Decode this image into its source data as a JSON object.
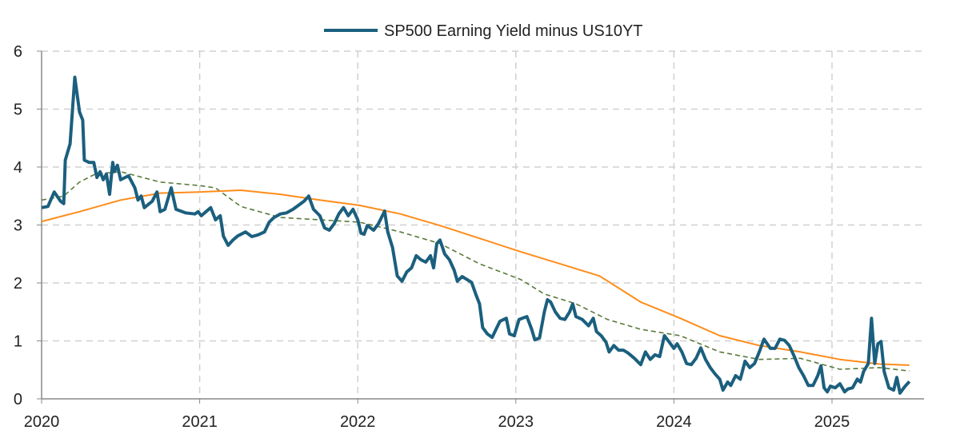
{
  "chart_data": {
    "type": "line",
    "title": "",
    "xlabel": "",
    "ylabel": "",
    "xlim": [
      2020,
      2025.6
    ],
    "ylim": [
      0,
      6
    ],
    "x_ticks": [
      2020,
      2021,
      2022,
      2023,
      2024,
      2025
    ],
    "x_tick_labels": [
      "2020",
      "2021",
      "2022",
      "2023",
      "2024",
      "2025"
    ],
    "y_ticks": [
      0,
      1,
      2,
      3,
      4,
      5,
      6
    ],
    "y_tick_labels": [
      "0",
      "1",
      "2",
      "3",
      "4",
      "5",
      "6"
    ],
    "grid": true,
    "legend_position": "top-center",
    "series": [
      {
        "name": "SP500 Earning Yield minus US10YT",
        "color": "#1b5f7e",
        "style": "solid",
        "in_legend": true,
        "points": [
          [
            2020.0,
            3.3
          ],
          [
            2020.04,
            3.32
          ],
          [
            2020.08,
            3.57
          ],
          [
            2020.12,
            3.41
          ],
          [
            2020.14,
            3.37
          ],
          [
            2020.15,
            4.12
          ],
          [
            2020.18,
            4.4
          ],
          [
            2020.21,
            5.55
          ],
          [
            2020.24,
            4.95
          ],
          [
            2020.26,
            4.81
          ],
          [
            2020.27,
            4.12
          ],
          [
            2020.3,
            4.08
          ],
          [
            2020.33,
            4.08
          ],
          [
            2020.35,
            3.82
          ],
          [
            2020.37,
            3.92
          ],
          [
            2020.39,
            3.78
          ],
          [
            2020.41,
            3.88
          ],
          [
            2020.43,
            3.53
          ],
          [
            2020.45,
            4.08
          ],
          [
            2020.46,
            3.92
          ],
          [
            2020.48,
            4.03
          ],
          [
            2020.5,
            3.78
          ],
          [
            2020.55,
            3.85
          ],
          [
            2020.59,
            3.64
          ],
          [
            2020.61,
            3.43
          ],
          [
            2020.63,
            3.5
          ],
          [
            2020.65,
            3.3
          ],
          [
            2020.7,
            3.41
          ],
          [
            2020.73,
            3.57
          ],
          [
            2020.75,
            3.23
          ],
          [
            2020.78,
            3.27
          ],
          [
            2020.82,
            3.64
          ],
          [
            2020.85,
            3.27
          ],
          [
            2020.91,
            3.21
          ],
          [
            2020.97,
            3.19
          ],
          [
            2020.99,
            3.23
          ],
          [
            2021.01,
            3.16
          ],
          [
            2021.04,
            3.23
          ],
          [
            2021.07,
            3.3
          ],
          [
            2021.1,
            3.09
          ],
          [
            2021.13,
            3.16
          ],
          [
            2021.15,
            2.81
          ],
          [
            2021.18,
            2.65
          ],
          [
            2021.21,
            2.74
          ],
          [
            2021.24,
            2.81
          ],
          [
            2021.29,
            2.88
          ],
          [
            2021.33,
            2.8
          ],
          [
            2021.37,
            2.83
          ],
          [
            2021.41,
            2.88
          ],
          [
            2021.44,
            3.05
          ],
          [
            2021.47,
            3.13
          ],
          [
            2021.51,
            3.19
          ],
          [
            2021.55,
            3.21
          ],
          [
            2021.59,
            3.27
          ],
          [
            2021.63,
            3.35
          ],
          [
            2021.66,
            3.41
          ],
          [
            2021.69,
            3.5
          ],
          [
            2021.72,
            3.27
          ],
          [
            2021.76,
            3.16
          ],
          [
            2021.79,
            2.95
          ],
          [
            2021.82,
            2.91
          ],
          [
            2021.85,
            3.02
          ],
          [
            2021.88,
            3.19
          ],
          [
            2021.91,
            3.3
          ],
          [
            2021.94,
            3.16
          ],
          [
            2021.97,
            3.27
          ],
          [
            2022.0,
            3.09
          ],
          [
            2022.02,
            2.86
          ],
          [
            2022.04,
            2.84
          ],
          [
            2022.06,
            2.99
          ],
          [
            2022.1,
            2.91
          ],
          [
            2022.13,
            3.02
          ],
          [
            2022.17,
            3.24
          ],
          [
            2022.19,
            2.88
          ],
          [
            2022.22,
            2.61
          ],
          [
            2022.25,
            2.12
          ],
          [
            2022.28,
            2.03
          ],
          [
            2022.31,
            2.19
          ],
          [
            2022.34,
            2.26
          ],
          [
            2022.37,
            2.47
          ],
          [
            2022.4,
            2.4
          ],
          [
            2022.43,
            2.36
          ],
          [
            2022.46,
            2.47
          ],
          [
            2022.48,
            2.26
          ],
          [
            2022.5,
            2.68
          ],
          [
            2022.52,
            2.74
          ],
          [
            2022.55,
            2.5
          ],
          [
            2022.58,
            2.4
          ],
          [
            2022.61,
            2.22
          ],
          [
            2022.63,
            2.03
          ],
          [
            2022.66,
            2.11
          ],
          [
            2022.69,
            2.06
          ],
          [
            2022.72,
            2.01
          ],
          [
            2022.75,
            1.78
          ],
          [
            2022.77,
            1.64
          ],
          [
            2022.79,
            1.23
          ],
          [
            2022.82,
            1.12
          ],
          [
            2022.85,
            1.06
          ],
          [
            2022.88,
            1.23
          ],
          [
            2022.9,
            1.34
          ],
          [
            2022.94,
            1.39
          ],
          [
            2022.96,
            1.12
          ],
          [
            2022.99,
            1.09
          ],
          [
            2023.02,
            1.37
          ],
          [
            2023.04,
            1.39
          ],
          [
            2023.07,
            1.42
          ],
          [
            2023.1,
            1.2
          ],
          [
            2023.12,
            1.02
          ],
          [
            2023.15,
            1.05
          ],
          [
            2023.18,
            1.5
          ],
          [
            2023.2,
            1.71
          ],
          [
            2023.22,
            1.67
          ],
          [
            2023.25,
            1.5
          ],
          [
            2023.28,
            1.39
          ],
          [
            2023.31,
            1.37
          ],
          [
            2023.34,
            1.5
          ],
          [
            2023.36,
            1.64
          ],
          [
            2023.38,
            1.42
          ],
          [
            2023.42,
            1.37
          ],
          [
            2023.46,
            1.26
          ],
          [
            2023.49,
            1.39
          ],
          [
            2023.51,
            1.16
          ],
          [
            2023.54,
            1.09
          ],
          [
            2023.57,
            0.98
          ],
          [
            2023.59,
            0.81
          ],
          [
            2023.62,
            0.92
          ],
          [
            2023.65,
            0.84
          ],
          [
            2023.68,
            0.84
          ],
          [
            2023.71,
            0.79
          ],
          [
            2023.75,
            0.7
          ],
          [
            2023.79,
            0.59
          ],
          [
            2023.82,
            0.81
          ],
          [
            2023.85,
            0.68
          ],
          [
            2023.88,
            0.76
          ],
          [
            2023.91,
            0.73
          ],
          [
            2023.94,
            1.09
          ],
          [
            2023.97,
            0.98
          ],
          [
            2024.0,
            0.87
          ],
          [
            2024.02,
            0.95
          ],
          [
            2024.05,
            0.81
          ],
          [
            2024.08,
            0.61
          ],
          [
            2024.11,
            0.59
          ],
          [
            2024.14,
            0.7
          ],
          [
            2024.17,
            0.88
          ],
          [
            2024.2,
            0.68
          ],
          [
            2024.23,
            0.54
          ],
          [
            2024.26,
            0.43
          ],
          [
            2024.29,
            0.34
          ],
          [
            2024.31,
            0.15
          ],
          [
            2024.34,
            0.29
          ],
          [
            2024.36,
            0.23
          ],
          [
            2024.39,
            0.4
          ],
          [
            2024.42,
            0.34
          ],
          [
            2024.45,
            0.65
          ],
          [
            2024.48,
            0.54
          ],
          [
            2024.51,
            0.61
          ],
          [
            2024.54,
            0.81
          ],
          [
            2024.57,
            1.03
          ],
          [
            2024.61,
            0.87
          ],
          [
            2024.64,
            0.87
          ],
          [
            2024.67,
            1.03
          ],
          [
            2024.7,
            1.01
          ],
          [
            2024.73,
            0.92
          ],
          [
            2024.76,
            0.74
          ],
          [
            2024.79,
            0.54
          ],
          [
            2024.82,
            0.4
          ],
          [
            2024.85,
            0.23
          ],
          [
            2024.88,
            0.23
          ],
          [
            2024.91,
            0.4
          ],
          [
            2024.93,
            0.57
          ],
          [
            2024.95,
            0.19
          ],
          [
            2024.97,
            0.12
          ],
          [
            2024.99,
            0.22
          ],
          [
            2025.02,
            0.19
          ],
          [
            2025.05,
            0.26
          ],
          [
            2025.08,
            0.12
          ],
          [
            2025.1,
            0.17
          ],
          [
            2025.13,
            0.19
          ],
          [
            2025.16,
            0.34
          ],
          [
            2025.18,
            0.29
          ],
          [
            2025.2,
            0.47
          ],
          [
            2025.23,
            0.61
          ],
          [
            2025.25,
            1.39
          ],
          [
            2025.27,
            0.61
          ],
          [
            2025.29,
            0.95
          ],
          [
            2025.31,
            0.99
          ],
          [
            2025.33,
            0.47
          ],
          [
            2025.36,
            0.19
          ],
          [
            2025.39,
            0.15
          ],
          [
            2025.41,
            0.37
          ],
          [
            2025.43,
            0.1
          ],
          [
            2025.46,
            0.21
          ],
          [
            2025.49,
            0.3
          ]
        ]
      },
      {
        "name": "Long moving average",
        "color": "#ff8c1a",
        "style": "solid",
        "in_legend": false,
        "points": [
          [
            2020.0,
            3.06
          ],
          [
            2020.24,
            3.23
          ],
          [
            2020.5,
            3.43
          ],
          [
            2020.75,
            3.55
          ],
          [
            2021.0,
            3.57
          ],
          [
            2021.26,
            3.6
          ],
          [
            2021.51,
            3.53
          ],
          [
            2021.76,
            3.43
          ],
          [
            2022.01,
            3.34
          ],
          [
            2022.27,
            3.19
          ],
          [
            2022.52,
            2.99
          ],
          [
            2022.77,
            2.77
          ],
          [
            2023.03,
            2.54
          ],
          [
            2023.28,
            2.33
          ],
          [
            2023.53,
            2.12
          ],
          [
            2023.79,
            1.67
          ],
          [
            2024.04,
            1.39
          ],
          [
            2024.29,
            1.09
          ],
          [
            2024.54,
            0.92
          ],
          [
            2024.8,
            0.81
          ],
          [
            2025.05,
            0.68
          ],
          [
            2025.3,
            0.6
          ],
          [
            2025.49,
            0.58
          ]
        ]
      },
      {
        "name": "Short moving average",
        "color": "#5a7a3a",
        "style": "dashed",
        "in_legend": false,
        "points": [
          [
            2020.0,
            3.43
          ],
          [
            2020.14,
            3.5
          ],
          [
            2020.24,
            3.74
          ],
          [
            2020.34,
            3.88
          ],
          [
            2020.5,
            3.92
          ],
          [
            2020.75,
            3.74
          ],
          [
            2021.0,
            3.68
          ],
          [
            2021.1,
            3.64
          ],
          [
            2021.26,
            3.32
          ],
          [
            2021.51,
            3.13
          ],
          [
            2021.76,
            3.09
          ],
          [
            2022.01,
            3.05
          ],
          [
            2022.27,
            2.88
          ],
          [
            2022.52,
            2.68
          ],
          [
            2022.77,
            2.33
          ],
          [
            2023.03,
            2.06
          ],
          [
            2023.18,
            1.81
          ],
          [
            2023.38,
            1.64
          ],
          [
            2023.58,
            1.37
          ],
          [
            2023.79,
            1.2
          ],
          [
            2024.04,
            1.09
          ],
          [
            2024.29,
            0.81
          ],
          [
            2024.54,
            0.68
          ],
          [
            2024.8,
            0.7
          ],
          [
            2025.05,
            0.51
          ],
          [
            2025.3,
            0.54
          ],
          [
            2025.49,
            0.48
          ]
        ]
      }
    ]
  }
}
